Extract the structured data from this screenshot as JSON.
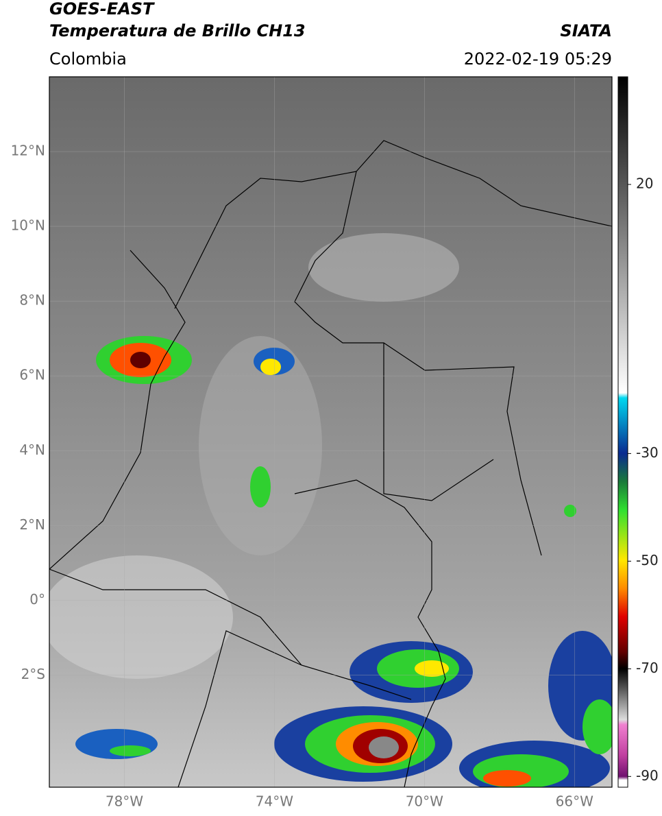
{
  "header": {
    "satellite": "GOES-EAST",
    "product": "Temperatura de Brillo CH13",
    "agency": "SIATA",
    "region": "Colombia",
    "datetime": "2022-02-19 05:29"
  },
  "map": {
    "xlim": [
      -80,
      -65
    ],
    "ylim": [
      -5,
      14
    ],
    "grid": true,
    "xticks": [
      {
        "value": -78,
        "label": "78°W"
      },
      {
        "value": -74,
        "label": "74°W"
      },
      {
        "value": -70,
        "label": "70°W"
      },
      {
        "value": -66,
        "label": "66°W"
      }
    ],
    "yticks": [
      {
        "value": 12,
        "label": "12°N"
      },
      {
        "value": 10,
        "label": "10°N"
      },
      {
        "value": 8,
        "label": "8°N"
      },
      {
        "value": 6,
        "label": "6°N"
      },
      {
        "value": 4,
        "label": "4°N"
      },
      {
        "value": 2,
        "label": "2°N"
      },
      {
        "value": 0,
        "label": "0°"
      },
      {
        "value": -2,
        "label": "2°S"
      }
    ]
  },
  "colorbar": {
    "lim": [
      -92,
      40
    ],
    "ticks": [
      20,
      -30,
      -50,
      -70,
      -90
    ]
  }
}
